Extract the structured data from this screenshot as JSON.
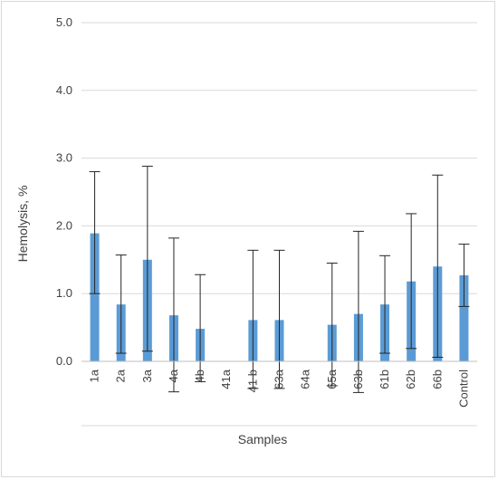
{
  "chart_data": {
    "type": "bar",
    "xlabel": "Samples",
    "ylabel": "Hemolysis, %",
    "ylim": [
      0,
      5
    ],
    "y_ticks": [
      "0.0",
      "1.0",
      "2.0",
      "3.0",
      "4.0",
      "5.0"
    ],
    "grid": true,
    "legend": "none",
    "bar_color": "#5b9bd5",
    "categories": [
      "1a",
      "2a",
      "3a",
      "4a",
      "4b",
      "41a",
      "41 b",
      "63a",
      "64a",
      "65a",
      "63b",
      "61b",
      "62b",
      "66b",
      "Control"
    ],
    "values": [
      1.89,
      0.84,
      1.5,
      0.68,
      0.48,
      0.0,
      0.61,
      0.61,
      0.0,
      0.54,
      0.7,
      0.84,
      1.18,
      1.4,
      1.27
    ],
    "error_low": [
      1.0,
      0.12,
      0.15,
      -0.45,
      -0.3,
      0.0,
      -0.4,
      -0.4,
      0.0,
      -0.36,
      -0.46,
      0.12,
      0.19,
      0.06,
      0.81
    ],
    "error_high": [
      2.8,
      1.57,
      2.88,
      1.82,
      1.28,
      0.0,
      1.64,
      1.64,
      0.0,
      1.45,
      1.92,
      1.56,
      2.18,
      2.75,
      1.73
    ]
  }
}
